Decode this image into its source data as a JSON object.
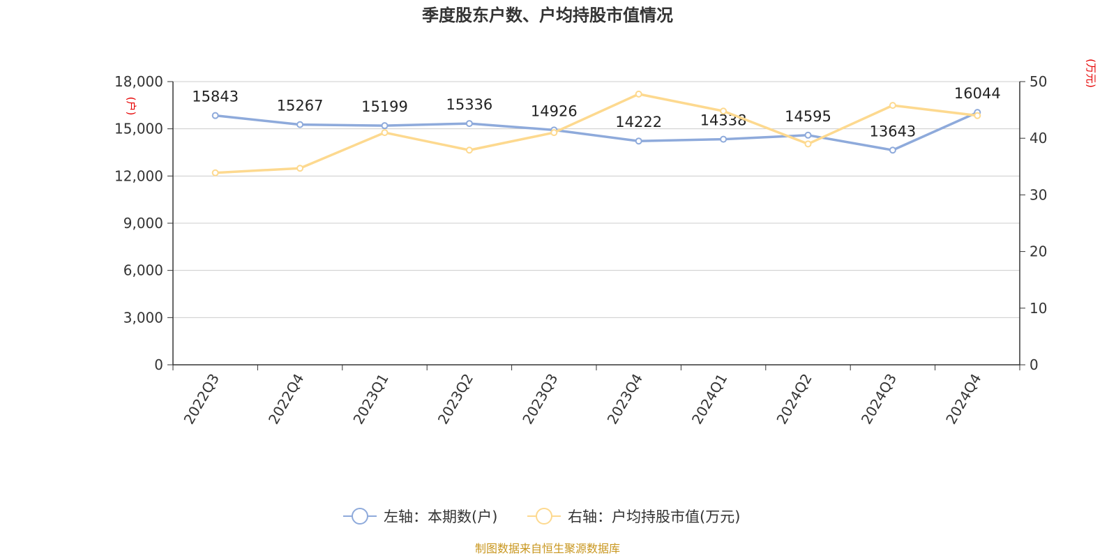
{
  "title": "季度股东户数、户均持股市值情况",
  "source": "制图数据来自恒生聚源数据库",
  "chart_data": {
    "type": "line",
    "categories": [
      "2022Q3",
      "2022Q4",
      "2023Q1",
      "2023Q2",
      "2023Q3",
      "2023Q4",
      "2024Q1",
      "2024Q2",
      "2024Q3",
      "2024Q4"
    ],
    "left_axis": {
      "unit": "(户)",
      "ylim": [
        0,
        18000
      ],
      "ticks": [
        0,
        3000,
        6000,
        9000,
        12000,
        15000,
        18000
      ],
      "tick_labels": [
        "0",
        "3,000",
        "6,000",
        "9,000",
        "12,000",
        "15,000",
        "18,000"
      ]
    },
    "right_axis": {
      "unit": "(万元)",
      "ylim": [
        0,
        50
      ],
      "ticks": [
        0,
        10,
        20,
        30,
        40,
        50
      ],
      "tick_labels": [
        "0",
        "10",
        "20",
        "30",
        "40",
        "50"
      ]
    },
    "series": [
      {
        "name": "左轴：本期数(户)",
        "axis": "left",
        "color": "#8eaadb",
        "values": [
          15843,
          15267,
          15199,
          15336,
          14926,
          14222,
          14338,
          14595,
          13643,
          16044
        ],
        "show_labels": true
      },
      {
        "name": "右轴：户均持股市值(万元)",
        "axis": "right",
        "color": "#fdd98f",
        "values": [
          33.9,
          34.7,
          41.0,
          37.9,
          41.0,
          47.8,
          44.8,
          39.0,
          45.8,
          44.0
        ],
        "show_labels": false
      }
    ],
    "grid": true,
    "legend_position": "bottom"
  }
}
